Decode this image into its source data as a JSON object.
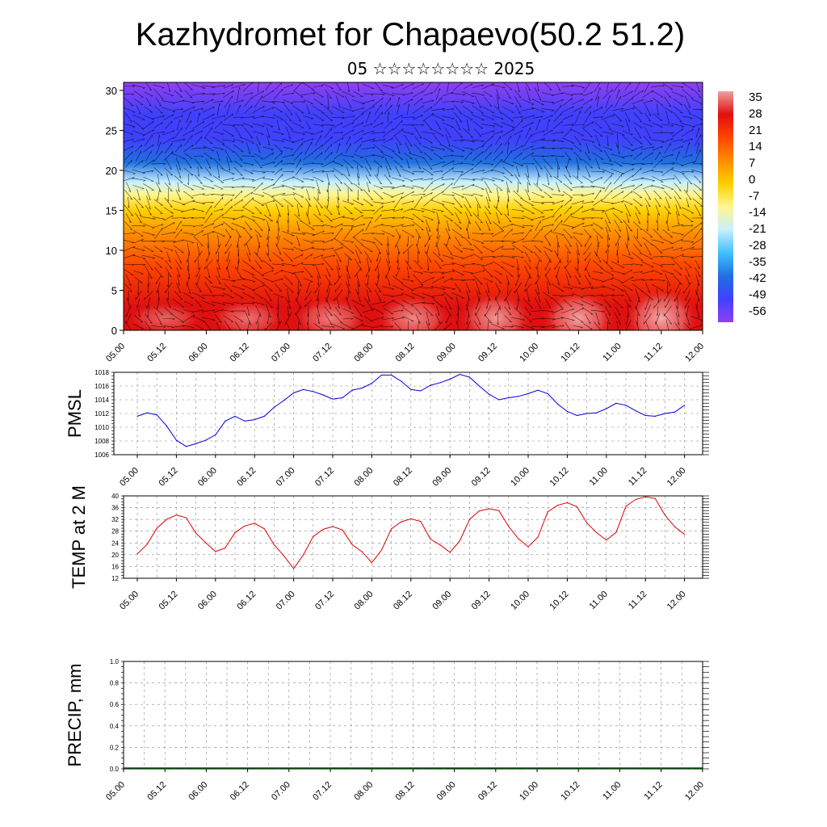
{
  "header": {
    "title": "Kazhydromet for Chapaevo(50.2 51.2)",
    "subtitle": "05 ☆☆☆☆☆☆☆☆ 2025"
  },
  "chart_data": [
    {
      "type": "heatmap",
      "title": "",
      "xlabel": "",
      "ylabel": "",
      "x_tick_labels": [
        "05.00",
        "05.12",
        "06.00",
        "06.12",
        "07.00",
        "07.12",
        "08.00",
        "08.12",
        "09.00",
        "09.12",
        "10.00",
        "10.12",
        "11.00",
        "11.12",
        "12.00"
      ],
      "y_ticks": [
        0,
        5,
        10,
        15,
        20,
        25,
        30
      ],
      "ylim": [
        0,
        31
      ],
      "colorbar_labels": [
        "35",
        "28",
        "21",
        "14",
        "7",
        "0",
        "-7",
        "-14",
        "-21",
        "-28",
        "-35",
        "-42",
        "-49",
        "-56"
      ],
      "colorbar_colors": [
        "#f0a0a0",
        "#e01010",
        "#ff4500",
        "#ff8c00",
        "#ffd000",
        "#fff68f",
        "#c8f0ff",
        "#40c0ff",
        "#2070e0",
        "#4040ff",
        "#9040f0"
      ],
      "overlay": "wind vectors",
      "temperature_profile": {
        "heights": [
          0,
          3,
          8,
          12,
          15,
          17,
          18.5,
          21,
          24,
          27,
          31
        ],
        "values": [
          30,
          24,
          18,
          8,
          -5,
          -14,
          -21,
          -35,
          -49,
          -52,
          -58
        ]
      }
    },
    {
      "type": "line",
      "ylabel": "PMSL",
      "x_tick_labels": [
        "05.00",
        "05.12",
        "06.00",
        "06.12",
        "07.00",
        "07.12",
        "08.00",
        "08.12",
        "09.00",
        "09.12",
        "10.00",
        "10.12",
        "11.00",
        "11.12",
        "12.00"
      ],
      "y_tick_labels": [
        "1006",
        "1008",
        "1010",
        "1012",
        "1014",
        "1016",
        "1018"
      ],
      "ylim": [
        1006,
        1018
      ],
      "line_color": "#0000dd",
      "series": [
        {
          "values": [
            1011.6,
            1012.1,
            1011.8,
            1010.2,
            1008.1,
            1007.2,
            1007.6,
            1008.1,
            1008.9,
            1010.9,
            1011.6,
            1010.9,
            1011.1,
            1011.6,
            1012.9,
            1013.9,
            1015.0,
            1015.5,
            1015.2,
            1014.7,
            1014.1,
            1014.3,
            1015.4,
            1015.7,
            1016.4,
            1017.6,
            1017.6,
            1016.7,
            1015.5,
            1015.3,
            1016.1,
            1016.5,
            1017.0,
            1017.7,
            1017.3,
            1016.0,
            1014.8,
            1014.0,
            1014.3,
            1014.5,
            1014.9,
            1015.4,
            1014.9,
            1013.4,
            1012.3,
            1011.7,
            1012.0,
            1012.1,
            1012.7,
            1013.5,
            1013.2,
            1012.4,
            1011.7,
            1011.6,
            1012.0,
            1012.2,
            1013.2
          ]
        }
      ]
    },
    {
      "type": "line",
      "ylabel": "TEMP at 2 M",
      "x_tick_labels": [
        "05.00",
        "05.12",
        "06.00",
        "06.12",
        "07.00",
        "07.12",
        "08.00",
        "08.12",
        "09.00",
        "09.12",
        "10.00",
        "10.12",
        "11.00",
        "11.12",
        "12.00"
      ],
      "y_tick_labels": [
        "12",
        "16",
        "20",
        "24",
        "28",
        "32",
        "36",
        "40"
      ],
      "ylim": [
        12,
        40
      ],
      "line_color": "#dd0000",
      "series": [
        {
          "values": [
            20.3,
            23.5,
            29.0,
            32.0,
            33.5,
            32.6,
            27.3,
            24.1,
            21.1,
            22.3,
            27.5,
            29.8,
            30.7,
            28.8,
            23.4,
            19.6,
            15.3,
            20.0,
            26.2,
            28.6,
            29.6,
            28.4,
            23.4,
            21.0,
            17.3,
            21.6,
            28.8,
            31.2,
            32.2,
            31.3,
            25.3,
            23.3,
            20.8,
            24.7,
            32.0,
            34.9,
            35.6,
            35.0,
            29.6,
            25.4,
            22.7,
            26.0,
            34.6,
            36.8,
            37.7,
            36.3,
            30.8,
            27.5,
            25.0,
            27.6,
            36.5,
            38.8,
            39.7,
            39.1,
            33.4,
            29.5,
            26.9
          ]
        }
      ]
    },
    {
      "type": "bar",
      "ylabel": "PRECIP, mm",
      "x_tick_labels": [
        "05.00",
        "05.12",
        "06.00",
        "06.12",
        "07.00",
        "07.12",
        "08.00",
        "08.12",
        "09.00",
        "09.12",
        "10.00",
        "10.12",
        "11.00",
        "11.12",
        "12.00"
      ],
      "y_tick_labels": [
        "0.0",
        "0.2",
        "0.4",
        "0.6",
        "0.8",
        "1.0"
      ],
      "ylim": [
        0,
        1
      ],
      "bar_color": "#005500",
      "values": [
        0,
        0,
        0,
        0,
        0,
        0,
        0,
        0,
        0,
        0,
        0,
        0,
        0,
        0,
        0,
        0,
        0,
        0,
        0,
        0,
        0,
        0,
        0,
        0,
        0,
        0,
        0,
        0,
        0,
        0,
        0,
        0,
        0,
        0,
        0,
        0,
        0,
        0,
        0,
        0,
        0,
        0,
        0,
        0,
        0,
        0,
        0,
        0,
        0,
        0,
        0,
        0,
        0,
        0,
        0,
        0,
        0
      ]
    }
  ]
}
